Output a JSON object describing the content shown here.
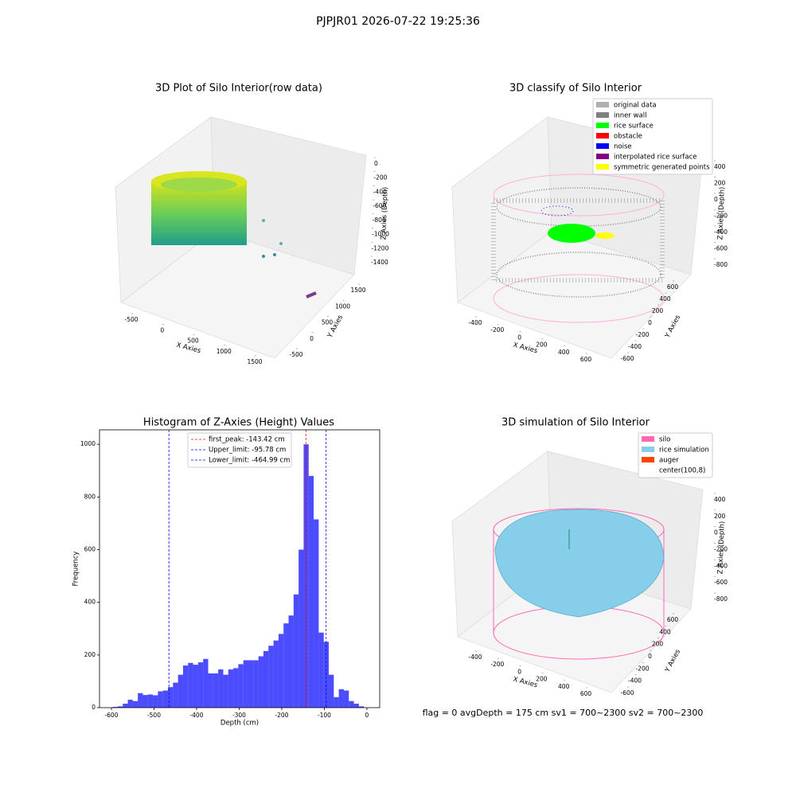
{
  "title": "PJPJR01 2026-07-22 19:25:36",
  "footer": "flag = 0     avgDepth = 175 cm  sv1 = 700~2300  sv2 = 700~2300",
  "chart_data": [
    {
      "type": "scatter3d",
      "title": "3D Plot of Silo Interior(row data)",
      "xlabel": "X Axies",
      "ylabel": "Y Axies",
      "zlabel": "Z Axies (Depth)",
      "xticks": [
        -500,
        0,
        500,
        1000,
        1500
      ],
      "yticks": [
        -500,
        0,
        500,
        1000,
        1500
      ],
      "zticks": [
        0,
        -200,
        -400,
        -600,
        -800,
        -1000,
        -1200,
        -1400
      ]
    },
    {
      "type": "scatter3d",
      "title": "3D classify of Silo Interior",
      "xlabel": "X Axies",
      "ylabel": "Y Axies",
      "zlabel": "Z Axies (Depth)",
      "xticks": [
        -400,
        -200,
        0,
        200,
        400,
        600
      ],
      "yticks": [
        -600,
        -400,
        -200,
        0,
        200,
        400,
        600
      ],
      "zticks": [
        400,
        200,
        0,
        -200,
        -400,
        -600,
        -800
      ],
      "series": [
        {
          "name": "original data",
          "color": "#b0b0b0"
        },
        {
          "name": "inner wall",
          "color": "#808080"
        },
        {
          "name": "rice surface",
          "color": "#00ff00"
        },
        {
          "name": "obstacle",
          "color": "#ff0000"
        },
        {
          "name": "noise",
          "color": "#0000ff"
        },
        {
          "name": "interpolated rice surface",
          "color": "#800080"
        },
        {
          "name": "symmetric generated points",
          "color": "#ffff00"
        }
      ]
    },
    {
      "type": "histogram",
      "title": "Histogram of Z-Axies (Height) Values",
      "xlabel": "Depth (cm)",
      "ylabel": "Frequency",
      "color": "#0000ff",
      "xlim": [
        -628,
        30
      ],
      "ylim": [
        0,
        1055
      ],
      "xticks": [
        -600,
        -500,
        -400,
        -300,
        -200,
        -100,
        0
      ],
      "yticks": [
        0,
        200,
        400,
        600,
        800,
        1000
      ],
      "bins": [
        -597,
        -585.2,
        -573.4,
        -561.6,
        -549.8,
        -538,
        -526.2,
        -514.4,
        -502.6,
        -490.8,
        -479,
        -467.2,
        -455.4,
        -443.6,
        -431.8,
        -420,
        -408.2,
        -396.4,
        -384.6,
        -372.8,
        -361,
        -349.2,
        -337.4,
        -325.6,
        -313.8,
        -302,
        -290.2,
        -278.4,
        -266.6,
        -254.8,
        -243,
        -231.2,
        -219.4,
        -207.6,
        -195.8,
        -184,
        -172.2,
        -160.4,
        -148.6,
        -136.8,
        -125,
        -113.2,
        -101.4,
        -89.6,
        -77.8,
        -66,
        -54.2,
        -42.4,
        -30.6,
        -18.8,
        -7
      ],
      "counts": [
        3,
        5,
        15,
        30,
        25,
        55,
        48,
        50,
        47,
        62,
        65,
        78,
        95,
        125,
        160,
        170,
        163,
        172,
        185,
        130,
        130,
        145,
        125,
        145,
        150,
        165,
        180,
        180,
        180,
        195,
        215,
        235,
        255,
        280,
        320,
        350,
        430,
        600,
        1000,
        880,
        715,
        285,
        250,
        125,
        40,
        70,
        65,
        25,
        15,
        5
      ],
      "vlines": [
        {
          "name": "first_peak: -143.42 cm",
          "value": -143.42,
          "color": "#ff0000"
        },
        {
          "name": "Upper_limit: -95.78 cm",
          "value": -95.78,
          "color": "#0000ff"
        },
        {
          "name": "Lower_limit: -464.99 cm",
          "value": -464.99,
          "color": "#0000ff"
        }
      ]
    },
    {
      "type": "surface3d",
      "title": "3D simulation of Silo Interior",
      "xlabel": "X Axies",
      "ylabel": "Y Axies",
      "zlabel": "Z Axies (Depth)",
      "xticks": [
        -400,
        -200,
        0,
        200,
        400,
        600
      ],
      "yticks": [
        -600,
        -400,
        -200,
        0,
        200,
        400,
        600
      ],
      "zticks": [
        400,
        200,
        0,
        -200,
        -400,
        -600,
        -800
      ],
      "series": [
        {
          "name": "silo",
          "color": "#ff69b4"
        },
        {
          "name": "rice simulation",
          "color": "#87ceeb"
        },
        {
          "name": "auger",
          "color": "#ff4500"
        },
        {
          "name": "center(100,8)",
          "color": "#ffffff"
        }
      ]
    }
  ]
}
